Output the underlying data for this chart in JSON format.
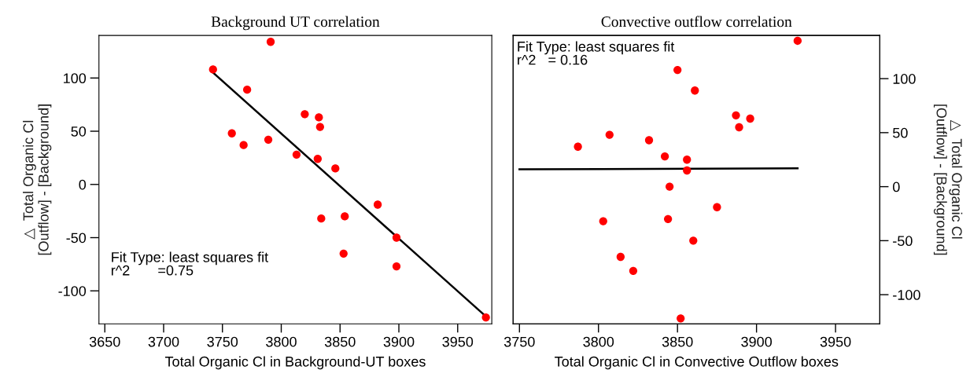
{
  "chart_data": [
    {
      "type": "scatter",
      "title": "Background UT correlation",
      "xlabel": "Total Organic Cl in Background-UT boxes",
      "ylabel": "△  Total Organic Cl\n[Outflow] - [Background]",
      "xlim": [
        3645,
        3979
      ],
      "xticks": [
        3650,
        3700,
        3750,
        3800,
        3850,
        3900,
        3950
      ],
      "ylim": [
        -131,
        140
      ],
      "yticks": [
        -100,
        -50,
        0,
        50,
        100
      ],
      "grid": false,
      "annotations": [
        "Fit Type: least squares fit\nr^2       =0.75"
      ],
      "series": [
        {
          "marker": "circle",
          "color": "#ff0000",
          "x": [
            3791,
            3742,
            3771,
            3820,
            3832,
            3833,
            3758,
            3768,
            3789,
            3813,
            3831,
            3846,
            3882,
            3834,
            3854,
            3898,
            3853,
            3898,
            3974
          ],
          "values": [
            134,
            108,
            89,
            66,
            63,
            54,
            48,
            37,
            42,
            28,
            24,
            15,
            -19,
            -32,
            -30,
            -50,
            -65,
            -77,
            -125
          ]
        },
        {
          "type": "line",
          "color": "#000000",
          "x": [
            3742,
            3974
          ],
          "values": [
            105,
            -124
          ]
        }
      ]
    },
    {
      "type": "scatter",
      "title": "Convective outflow correlation",
      "xlabel": "Total Organic Cl in Convective Outflow boxes",
      "y2label": "△  Total Organic Cl\n[Outflow] - [Background]",
      "xlim": [
        3746,
        3978
      ],
      "xticks": [
        3750,
        3800,
        3850,
        3900,
        3950
      ],
      "y2lim": [
        -127,
        140
      ],
      "y2ticks": [
        -100,
        -50,
        0,
        50,
        100
      ],
      "grid": false,
      "annotations": [
        "Fit Type: least squares fit\nr^2   = 0.16"
      ],
      "series": [
        {
          "marker": "circle",
          "axis": "y2",
          "color": "#ff0000",
          "x": [
            3926,
            3850,
            3861,
            3887,
            3896,
            3889,
            3807,
            3787,
            3832,
            3842,
            3856,
            3856,
            3845,
            3875,
            3803,
            3844,
            3860,
            3814,
            3822,
            3852
          ],
          "values": [
            135,
            108,
            89,
            66,
            63,
            55,
            48,
            37,
            43,
            28,
            25,
            15,
            0,
            -19,
            -32,
            -30,
            -50,
            -65,
            -78,
            -122
          ]
        },
        {
          "type": "line",
          "axis": "y2",
          "color": "#000000",
          "x": [
            3750,
            3926
          ],
          "values": [
            16,
            17
          ]
        }
      ]
    }
  ]
}
